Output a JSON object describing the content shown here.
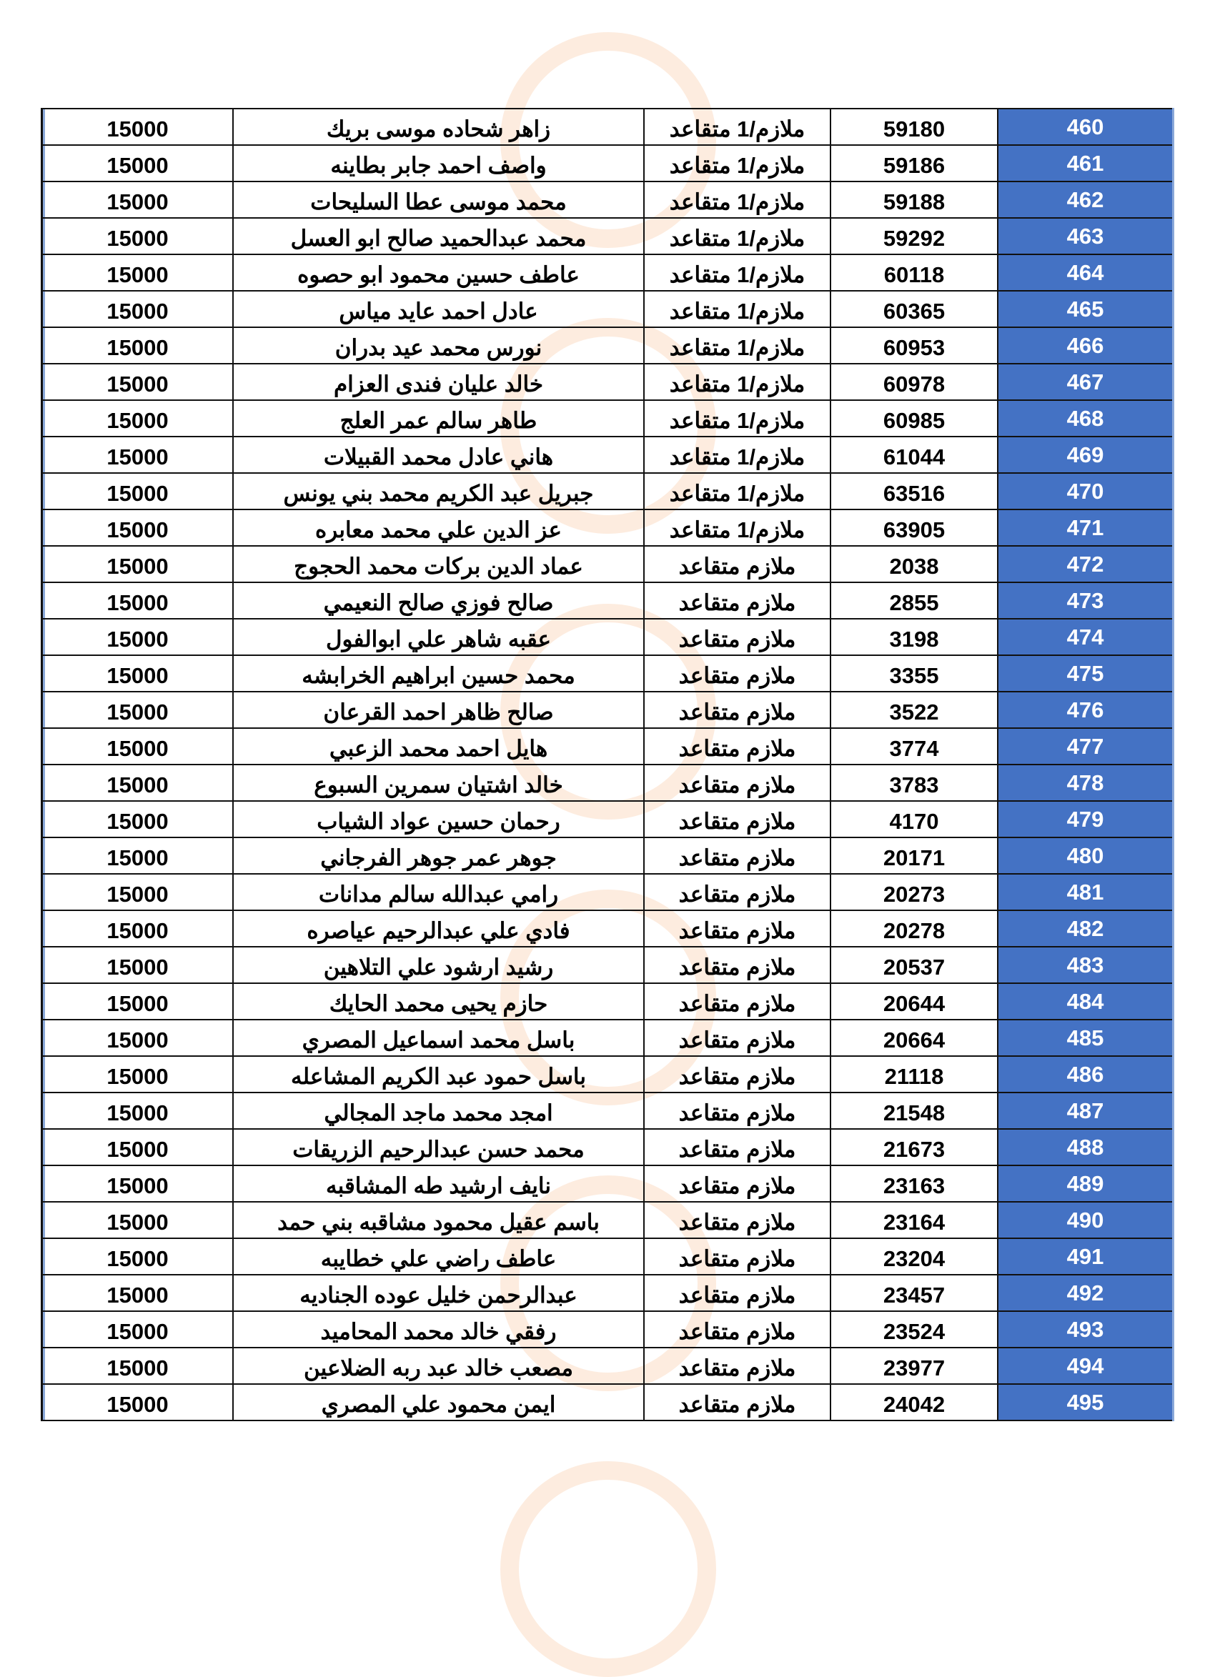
{
  "colors": {
    "index_column": "#4472C4",
    "index_text": "#FFFFFF"
  },
  "rows": [
    {
      "index": "460",
      "number": "59180",
      "rank": "ملازم/1 متقاعد",
      "name": "زاهر شحاده موسى بريك",
      "amount": "15000"
    },
    {
      "index": "461",
      "number": "59186",
      "rank": "ملازم/1 متقاعد",
      "name": "واصف احمد جابر بطاينه",
      "amount": "15000"
    },
    {
      "index": "462",
      "number": "59188",
      "rank": "ملازم/1 متقاعد",
      "name": "محمد موسى عطا السليحات",
      "amount": "15000"
    },
    {
      "index": "463",
      "number": "59292",
      "rank": "ملازم/1 متقاعد",
      "name": "محمد عبدالحميد صالح ابو العسل",
      "amount": "15000"
    },
    {
      "index": "464",
      "number": "60118",
      "rank": "ملازم/1 متقاعد",
      "name": "عاطف حسين محمود ابو حصوه",
      "amount": "15000"
    },
    {
      "index": "465",
      "number": "60365",
      "rank": "ملازم/1 متقاعد",
      "name": "عادل احمد عايد مياس",
      "amount": "15000"
    },
    {
      "index": "466",
      "number": "60953",
      "rank": "ملازم/1 متقاعد",
      "name": "نورس محمد عيد بدران",
      "amount": "15000"
    },
    {
      "index": "467",
      "number": "60978",
      "rank": "ملازم/1 متقاعد",
      "name": "خالد عليان فندى العزام",
      "amount": "15000"
    },
    {
      "index": "468",
      "number": "60985",
      "rank": "ملازم/1 متقاعد",
      "name": "طاهر سالم عمر العلج",
      "amount": "15000"
    },
    {
      "index": "469",
      "number": "61044",
      "rank": "ملازم/1 متقاعد",
      "name": "هاني عادل محمد القبيلات",
      "amount": "15000"
    },
    {
      "index": "470",
      "number": "63516",
      "rank": "ملازم/1 متقاعد",
      "name": "جبريل عبد  الكريم محمد بني  يونس",
      "amount": "15000"
    },
    {
      "index": "471",
      "number": "63905",
      "rank": "ملازم/1 متقاعد",
      "name": "عز الدين علي محمد معابره",
      "amount": "15000"
    },
    {
      "index": "472",
      "number": "2038",
      "rank": "ملازم متقاعد",
      "name": "عماد الدين بركات محمد الحجوج",
      "amount": "15000"
    },
    {
      "index": "473",
      "number": "2855",
      "rank": "ملازم متقاعد",
      "name": "صالح فوزي صالح النعيمي",
      "amount": "15000"
    },
    {
      "index": "474",
      "number": "3198",
      "rank": "ملازم متقاعد",
      "name": "عقبه شاهر علي ابوالفول",
      "amount": "15000"
    },
    {
      "index": "475",
      "number": "3355",
      "rank": "ملازم متقاعد",
      "name": "محمد حسين ابراهيم الخرابشه",
      "amount": "15000"
    },
    {
      "index": "476",
      "number": "3522",
      "rank": "ملازم متقاعد",
      "name": "صالح ظاهر احمد القرعان",
      "amount": "15000"
    },
    {
      "index": "477",
      "number": "3774",
      "rank": "ملازم متقاعد",
      "name": "هايل احمد محمد الزعبي",
      "amount": "15000"
    },
    {
      "index": "478",
      "number": "3783",
      "rank": "ملازم متقاعد",
      "name": "خالد اشتيان سمرين السبوع",
      "amount": "15000"
    },
    {
      "index": "479",
      "number": "4170",
      "rank": "ملازم متقاعد",
      "name": "رحمان حسين عواد الشياب",
      "amount": "15000"
    },
    {
      "index": "480",
      "number": "20171",
      "rank": "ملازم متقاعد",
      "name": "جوهر عمر جوهر الفرجاني",
      "amount": "15000"
    },
    {
      "index": "481",
      "number": "20273",
      "rank": "ملازم متقاعد",
      "name": "رامي عبدالله سالم مدانات",
      "amount": "15000"
    },
    {
      "index": "482",
      "number": "20278",
      "rank": "ملازم متقاعد",
      "name": "فادي علي عبدالرحيم عياصره",
      "amount": "15000"
    },
    {
      "index": "483",
      "number": "20537",
      "rank": "ملازم متقاعد",
      "name": "رشيد ارشود علي التلاهين",
      "amount": "15000"
    },
    {
      "index": "484",
      "number": "20644",
      "rank": "ملازم متقاعد",
      "name": "حازم يحيى محمد الحايك",
      "amount": "15000"
    },
    {
      "index": "485",
      "number": "20664",
      "rank": "ملازم متقاعد",
      "name": "باسل محمد اسماعيل المصري",
      "amount": "15000"
    },
    {
      "index": "486",
      "number": "21118",
      "rank": "ملازم متقاعد",
      "name": "باسل حمود عبد الكريم المشاعله",
      "amount": "15000"
    },
    {
      "index": "487",
      "number": "21548",
      "rank": "ملازم متقاعد",
      "name": "امجد محمد ماجد المجالي",
      "amount": "15000"
    },
    {
      "index": "488",
      "number": "21673",
      "rank": "ملازم متقاعد",
      "name": "محمد حسن عبدالرحيم الزريقات",
      "amount": "15000"
    },
    {
      "index": "489",
      "number": "23163",
      "rank": "ملازم متقاعد",
      "name": "نايف ارشيد طه المشاقبه",
      "amount": "15000"
    },
    {
      "index": "490",
      "number": "23164",
      "rank": "ملازم متقاعد",
      "name": "باسم عقيل محمود مشاقبه بني حمد",
      "amount": "15000"
    },
    {
      "index": "491",
      "number": "23204",
      "rank": "ملازم متقاعد",
      "name": "عاطف راضي علي خطايبه",
      "amount": "15000"
    },
    {
      "index": "492",
      "number": "23457",
      "rank": "ملازم متقاعد",
      "name": "عبدالرحمن خليل عوده الجناديه",
      "amount": "15000"
    },
    {
      "index": "493",
      "number": "23524",
      "rank": "ملازم متقاعد",
      "name": "رفقي خالد محمد المحاميد",
      "amount": "15000"
    },
    {
      "index": "494",
      "number": "23977",
      "rank": "ملازم متقاعد",
      "name": "مصعب خالد عبد ربه الضلاعين",
      "amount": "15000"
    },
    {
      "index": "495",
      "number": "24042",
      "rank": "ملازم متقاعد",
      "name": "ايمن محمود علي المصري",
      "amount": "15000"
    }
  ]
}
